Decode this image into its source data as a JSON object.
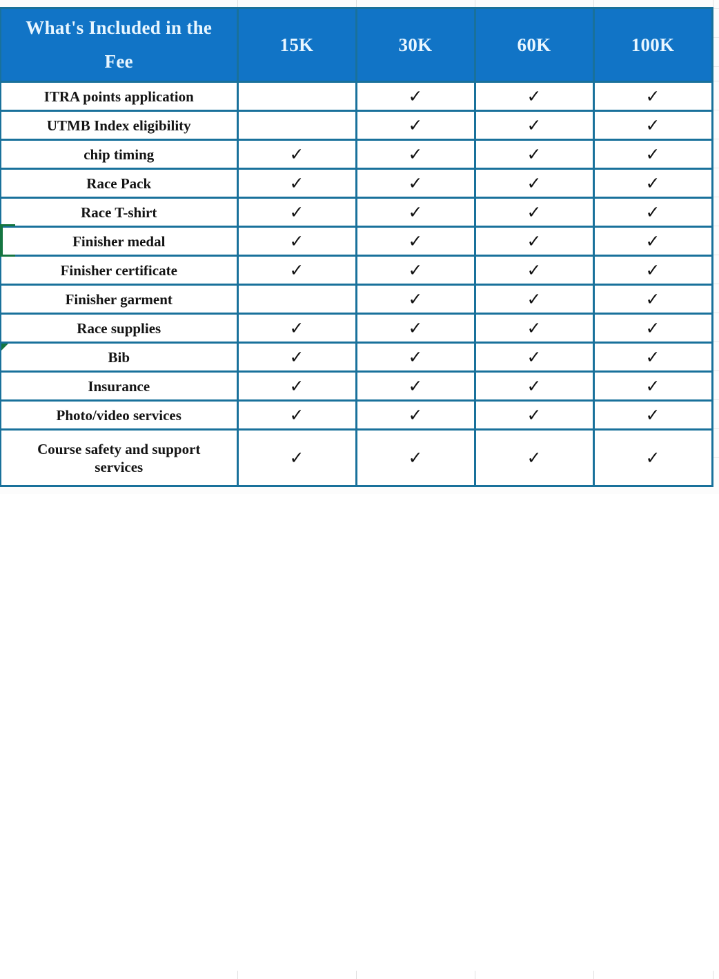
{
  "table": {
    "header": {
      "title": "What's Included in the Fee",
      "columns": [
        "15K",
        "30K",
        "60K",
        "100K"
      ]
    },
    "check_symbol": "✓",
    "rows": [
      {
        "label": "ITRA points application",
        "checks": [
          false,
          true,
          true,
          true
        ]
      },
      {
        "label": "UTMB Index eligibility",
        "checks": [
          false,
          true,
          true,
          true
        ]
      },
      {
        "label": "chip timing",
        "checks": [
          true,
          true,
          true,
          true
        ]
      },
      {
        "label": "Race Pack",
        "checks": [
          true,
          true,
          true,
          true
        ]
      },
      {
        "label": "Race T-shirt",
        "checks": [
          true,
          true,
          true,
          true
        ]
      },
      {
        "label": "Finisher medal",
        "checks": [
          true,
          true,
          true,
          true
        ],
        "selection_marker": "green-cell-border-left"
      },
      {
        "label": "Finisher certificate",
        "checks": [
          true,
          true,
          true,
          true
        ]
      },
      {
        "label": "Finisher garment",
        "checks": [
          false,
          true,
          true,
          true
        ]
      },
      {
        "label": "Race supplies",
        "checks": [
          true,
          true,
          true,
          true
        ]
      },
      {
        "label": "Bib",
        "checks": [
          true,
          true,
          true,
          true
        ],
        "corner_flag": "green-corner-triangle"
      },
      {
        "label": "Insurance",
        "checks": [
          true,
          true,
          true,
          true
        ]
      },
      {
        "label": "Photo/video services",
        "checks": [
          true,
          true,
          true,
          true
        ]
      },
      {
        "label": "Course safety and support services",
        "checks": [
          true,
          true,
          true,
          true
        ],
        "tall": true
      }
    ],
    "colors": {
      "header_bg": "#1174C6",
      "header_text": "#E8F6FF",
      "border_teal": "#19719B",
      "selection_green": "#157540",
      "body_text": "#141414",
      "sheet_gridline": "#E0E0E0"
    }
  }
}
